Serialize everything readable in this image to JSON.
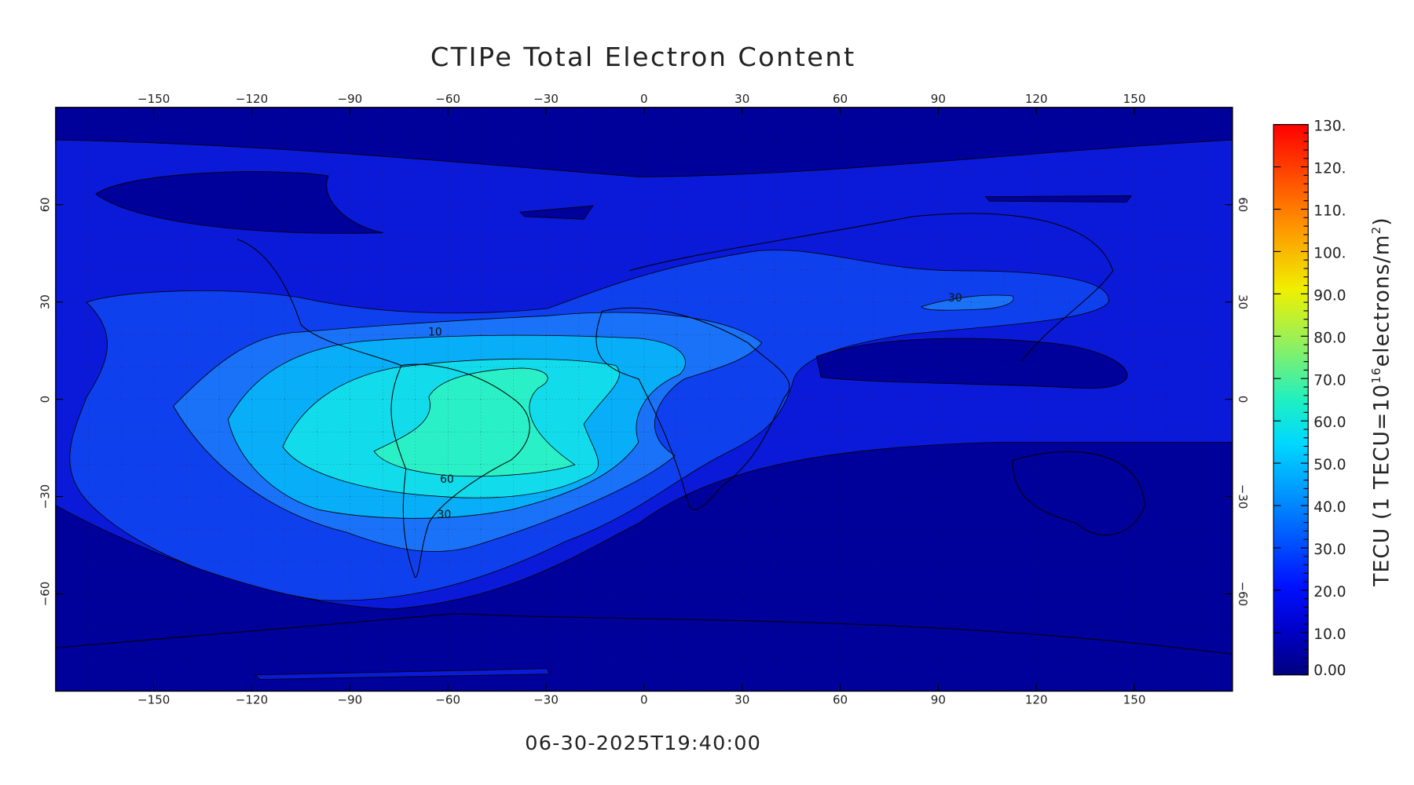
{
  "title": "CTIPe Total Electron Content",
  "timestamp": "06-30-2025T19:40:00",
  "map": {
    "lon_labels": [
      "−150",
      "−120",
      "−90",
      "−60",
      "−30",
      "0",
      "30",
      "60",
      "90",
      "120",
      "150"
    ],
    "lat_labels": [
      "−60",
      "−30",
      "0",
      "30",
      "60"
    ],
    "contour_labels": [
      "30",
      "10",
      "60",
      "30"
    ]
  },
  "colorbar": {
    "labels": [
      "0.00",
      "10.0",
      "20.0",
      "30.0",
      "40.0",
      "50.0",
      "60.0",
      "70.0",
      "80.0",
      "90.0",
      "100.",
      "110.",
      "120.",
      "130."
    ],
    "title": [
      "TECU (1 TECU=10",
      "16",
      "electrons/m",
      "2",
      ")"
    ]
  }
}
